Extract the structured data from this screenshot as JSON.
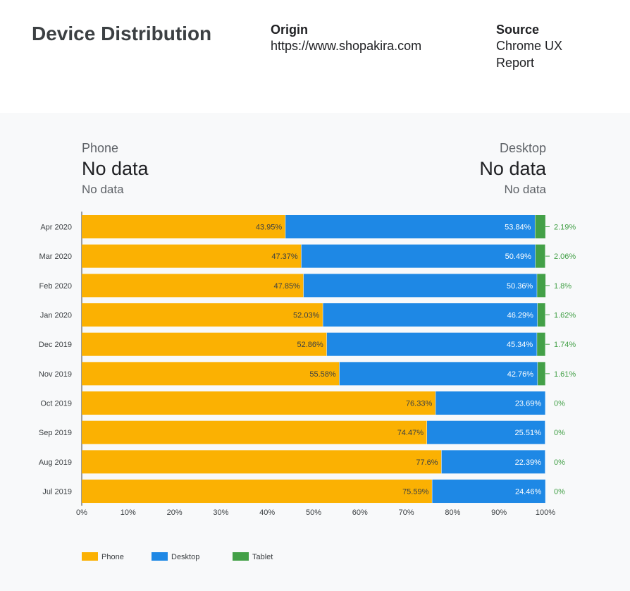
{
  "header": {
    "title": "Device Distribution",
    "origin_label": "Origin",
    "origin_value": "https://www.shopakira.com",
    "source_label": "Source",
    "source_line1": "Chrome UX",
    "source_line2": "Report"
  },
  "summary": {
    "phone": {
      "label": "Phone",
      "value": "No data",
      "sub": "No data"
    },
    "desktop": {
      "label": "Desktop",
      "value": "No data",
      "sub": "No data"
    }
  },
  "colors": {
    "phone": "#fbb102",
    "desktop": "#1e88e5",
    "tablet": "#43a047",
    "tablet_text": "#43a047"
  },
  "chart_data": {
    "type": "bar",
    "orientation": "horizontal",
    "stacked": true,
    "categories": [
      "Apr 2020",
      "Mar 2020",
      "Feb 2020",
      "Jan 2020",
      "Dec 2019",
      "Nov 2019",
      "Oct 2019",
      "Sep 2019",
      "Aug 2019",
      "Jul 2019"
    ],
    "series": [
      {
        "name": "Phone",
        "values": [
          43.95,
          47.37,
          47.85,
          52.03,
          52.86,
          55.58,
          76.33,
          74.47,
          77.6,
          75.59
        ],
        "labels": [
          "43.95%",
          "47.37%",
          "47.85%",
          "52.03%",
          "52.86%",
          "55.58%",
          "76.33%",
          "74.47%",
          "77.6%",
          "75.59%"
        ]
      },
      {
        "name": "Desktop",
        "values": [
          53.84,
          50.49,
          50.36,
          46.29,
          45.34,
          42.76,
          23.69,
          25.51,
          22.39,
          24.46
        ],
        "labels": [
          "53.84%",
          "50.49%",
          "50.36%",
          "46.29%",
          "45.34%",
          "42.76%",
          "23.69%",
          "25.51%",
          "22.39%",
          "24.46%"
        ]
      },
      {
        "name": "Tablet",
        "values": [
          2.19,
          2.06,
          1.8,
          1.62,
          1.74,
          1.61,
          0,
          0,
          0,
          0
        ],
        "labels": [
          "2.19%",
          "2.06%",
          "1.8%",
          "1.62%",
          "1.74%",
          "1.61%",
          "0%",
          "0%",
          "0%",
          "0%"
        ]
      }
    ],
    "xlim": [
      0,
      100
    ],
    "xticks": [
      "0%",
      "10%",
      "20%",
      "30%",
      "40%",
      "50%",
      "60%",
      "70%",
      "80%",
      "90%",
      "100%"
    ],
    "legend_position": "bottom-left",
    "grid": false
  }
}
